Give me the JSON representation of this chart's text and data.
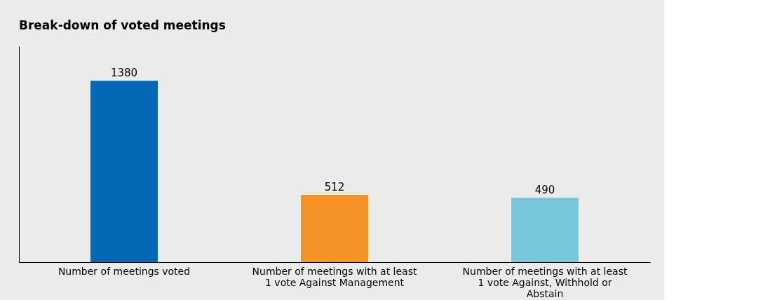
{
  "chart_data": {
    "type": "bar",
    "title": "Break-down of voted meetings",
    "categories": [
      "Number of meetings voted",
      "Number of meetings with at least 1 vote Against Management",
      "Number of meetings with at least 1 vote Against, Withhold or Abstain"
    ],
    "values": [
      1380,
      512,
      490
    ],
    "colors": [
      "#0068b4",
      "#f39325",
      "#77c8dc"
    ],
    "data_labels": true,
    "grid": false
  }
}
